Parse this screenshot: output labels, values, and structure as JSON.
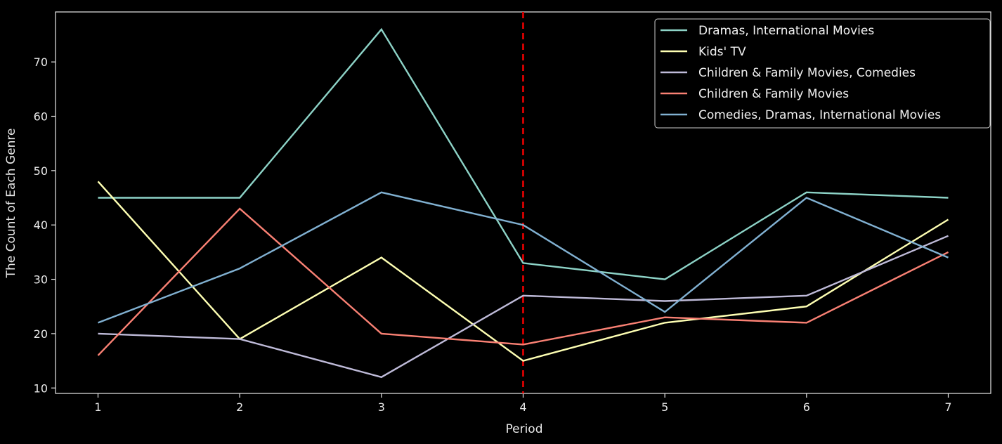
{
  "chart_data": {
    "type": "line",
    "x": [
      1,
      2,
      3,
      4,
      5,
      6,
      7
    ],
    "xlabel": "Period",
    "ylabel": "The Count of Each Genre",
    "xlim": [
      0.7,
      7.3
    ],
    "ylim": [
      9.0,
      79.2
    ],
    "x_ticks": [
      1,
      2,
      3,
      4,
      5,
      6,
      7
    ],
    "y_ticks": [
      10,
      20,
      30,
      40,
      50,
      60,
      70
    ],
    "grid": false,
    "legend_position": "top-right",
    "vertical_reference_line": {
      "x": 4,
      "color": "#cc0000",
      "style": "dashed"
    },
    "series": [
      {
        "name": "Dramas, International Movies",
        "color": "#8dd3c7",
        "values": [
          45,
          45,
          76,
          33,
          30,
          46,
          45
        ]
      },
      {
        "name": "Kids' TV",
        "color": "#feffb3",
        "values": [
          48,
          19,
          34,
          15,
          22,
          25,
          41
        ]
      },
      {
        "name": "Children & Family Movies, Comedies",
        "color": "#bfbbd9",
        "values": [
          20,
          19,
          12,
          27,
          26,
          27,
          38
        ]
      },
      {
        "name": "Children & Family Movies",
        "color": "#fa8174",
        "values": [
          16,
          43,
          20,
          18,
          23,
          22,
          35
        ]
      },
      {
        "name": "Comedies, Dramas, International Movies",
        "color": "#81b1d2",
        "values": [
          22,
          32,
          46,
          40,
          24,
          45,
          34
        ]
      }
    ]
  }
}
